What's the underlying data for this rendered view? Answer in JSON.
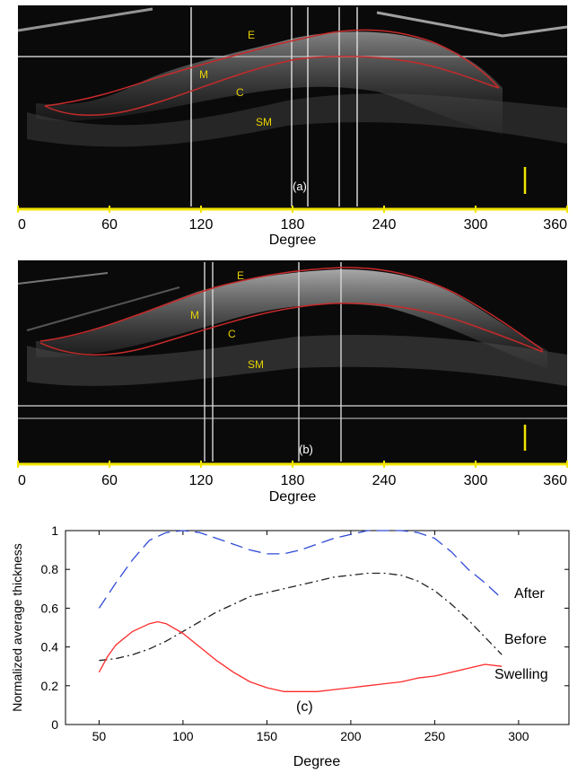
{
  "colors": {
    "scan_bg": "#0a0a0a",
    "scan_axis": "#f2e500",
    "boundary": "#c62a2a",
    "marker": "#f2e500",
    "after": "#2f4bd8",
    "before": "#222222",
    "swelling": "#ff2a2a"
  },
  "panel_a": {
    "tag": "(a)",
    "xlabel": "Degree",
    "ticks": [
      "0",
      "60",
      "120",
      "180",
      "240",
      "300",
      "360"
    ],
    "layers": [
      "E",
      "M",
      "C",
      "SM"
    ]
  },
  "panel_b": {
    "tag": "(b)",
    "xlabel": "Degree",
    "ticks": [
      "0",
      "60",
      "120",
      "180",
      "240",
      "300",
      "360"
    ],
    "layers": [
      "E",
      "M",
      "C",
      "SM"
    ]
  },
  "chart_data": {
    "type": "line",
    "tag": "(c)",
    "xlabel": "Degree",
    "ylabel": "Normalized average thickness",
    "xlim": [
      30,
      330
    ],
    "ylim": [
      0,
      1
    ],
    "xticks": [
      50,
      100,
      150,
      200,
      250,
      300
    ],
    "yticks": [
      0,
      0.2,
      0.4,
      0.6,
      0.8,
      1
    ],
    "ytick_labels": [
      "0",
      "0.2",
      "0.4",
      "0.6",
      "0.8",
      "1"
    ],
    "grid": false,
    "series": [
      {
        "name": "After",
        "style": "dashed",
        "color": "#2f4bd8",
        "x": [
          50,
          60,
          70,
          80,
          90,
          100,
          110,
          120,
          130,
          140,
          150,
          160,
          170,
          180,
          190,
          200,
          210,
          220,
          230,
          240,
          250,
          260,
          270,
          280,
          290
        ],
        "y": [
          0.6,
          0.73,
          0.85,
          0.95,
          0.99,
          1.0,
          0.99,
          0.96,
          0.93,
          0.9,
          0.88,
          0.88,
          0.9,
          0.93,
          0.96,
          0.98,
          1.0,
          1.0,
          1.0,
          0.99,
          0.96,
          0.89,
          0.8,
          0.73,
          0.65
        ]
      },
      {
        "name": "Before",
        "style": "dashdot",
        "color": "#222222",
        "x": [
          50,
          60,
          70,
          80,
          90,
          100,
          110,
          120,
          130,
          140,
          150,
          160,
          170,
          180,
          190,
          200,
          210,
          220,
          230,
          240,
          250,
          260,
          270,
          280,
          290
        ],
        "y": [
          0.33,
          0.34,
          0.36,
          0.39,
          0.43,
          0.48,
          0.53,
          0.58,
          0.62,
          0.66,
          0.68,
          0.7,
          0.72,
          0.74,
          0.76,
          0.77,
          0.78,
          0.78,
          0.77,
          0.74,
          0.69,
          0.62,
          0.54,
          0.45,
          0.36
        ]
      },
      {
        "name": "Swelling",
        "style": "solid",
        "color": "#ff2a2a",
        "x": [
          50,
          55,
          60,
          70,
          80,
          85,
          90,
          100,
          110,
          120,
          130,
          140,
          150,
          160,
          170,
          180,
          190,
          200,
          210,
          220,
          230,
          240,
          250,
          260,
          270,
          280,
          290
        ],
        "y": [
          0.27,
          0.35,
          0.41,
          0.48,
          0.52,
          0.53,
          0.52,
          0.47,
          0.4,
          0.33,
          0.27,
          0.22,
          0.19,
          0.17,
          0.17,
          0.17,
          0.18,
          0.19,
          0.2,
          0.21,
          0.22,
          0.24,
          0.25,
          0.27,
          0.29,
          0.31,
          0.3
        ]
      }
    ]
  }
}
